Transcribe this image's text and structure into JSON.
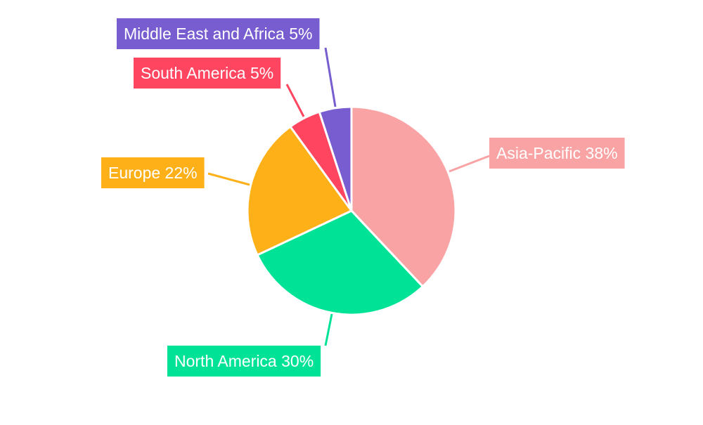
{
  "chart_data": {
    "type": "pie",
    "title": "",
    "start_angle": "top, clockwise",
    "slices": [
      {
        "name": "Asia-Pacific",
        "value": 38,
        "label": "Asia-Pacific 38%",
        "color": "#F9A3A4"
      },
      {
        "name": "North America",
        "value": 30,
        "label": "North America 30%",
        "color": "#00E396"
      },
      {
        "name": "Europe",
        "value": 22,
        "label": "Europe 22%",
        "color": "#FEB019"
      },
      {
        "name": "South America",
        "value": 5,
        "label": "South America 5%",
        "color": "#FF4560"
      },
      {
        "name": "Middle East and Africa",
        "value": 5,
        "label": "Middle East and Africa 5%",
        "color": "#775DD0"
      }
    ],
    "legend": "none",
    "data_labels": "outside with leader lines"
  }
}
